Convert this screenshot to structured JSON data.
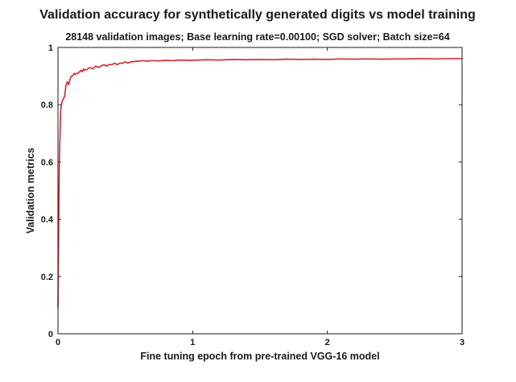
{
  "chart_data": {
    "type": "line",
    "title": "Validation accuracy for synthetically generated digits vs model training",
    "subtitle": "28148 validation images; Base learning rate=0.00100; SGD solver; Batch size=64",
    "xlabel": "Fine tuning epoch from pre-trained VGG-16 model",
    "ylabel": "Validation metrics",
    "xlim": [
      0,
      3
    ],
    "ylim": [
      0,
      1
    ],
    "x_ticks": [
      0,
      1,
      2,
      3
    ],
    "x_tick_labels": [
      "0",
      "1",
      "2",
      "3"
    ],
    "y_ticks": [
      0,
      0.2,
      0.4,
      0.6,
      0.8,
      1
    ],
    "y_tick_labels": [
      "0",
      "0.2",
      "0.4",
      "0.6",
      "0.8",
      "1"
    ],
    "grid": false,
    "series": [
      {
        "color": "#d4242a",
        "x": [
          0,
          0.01,
          0.02,
          0.03,
          0.04,
          0.05,
          0.06,
          0.07,
          0.08,
          0.09,
          0.1,
          0.11,
          0.12,
          0.13,
          0.14,
          0.15,
          0.16,
          0.17,
          0.18,
          0.19,
          0.2,
          0.22,
          0.24,
          0.26,
          0.28,
          0.3,
          0.32,
          0.34,
          0.36,
          0.38,
          0.4,
          0.42,
          0.44,
          0.46,
          0.48,
          0.5,
          0.52,
          0.54,
          0.56,
          0.58,
          0.6,
          0.63,
          0.66,
          0.7,
          0.75,
          0.8,
          0.85,
          0.9,
          1.0,
          1.1,
          1.2,
          1.3,
          1.4,
          1.5,
          1.6,
          1.7,
          1.8,
          1.9,
          2.0,
          2.1,
          2.2,
          2.3,
          2.4,
          2.5,
          2.6,
          2.7,
          2.8,
          2.9,
          3.0
        ],
        "y": [
          0.09,
          0.6,
          0.78,
          0.81,
          0.82,
          0.83,
          0.87,
          0.88,
          0.87,
          0.89,
          0.9,
          0.9,
          0.91,
          0.905,
          0.91,
          0.91,
          0.915,
          0.92,
          0.915,
          0.925,
          0.92,
          0.925,
          0.93,
          0.925,
          0.935,
          0.93,
          0.935,
          0.94,
          0.935,
          0.94,
          0.94,
          0.945,
          0.94,
          0.945,
          0.945,
          0.95,
          0.945,
          0.95,
          0.95,
          0.952,
          0.952,
          0.954,
          0.952,
          0.954,
          0.953,
          0.955,
          0.954,
          0.956,
          0.955,
          0.957,
          0.956,
          0.958,
          0.957,
          0.958,
          0.957,
          0.959,
          0.958,
          0.959,
          0.958,
          0.96,
          0.959,
          0.96,
          0.959,
          0.96,
          0.96,
          0.961,
          0.96,
          0.961,
          0.961
        ]
      }
    ]
  }
}
